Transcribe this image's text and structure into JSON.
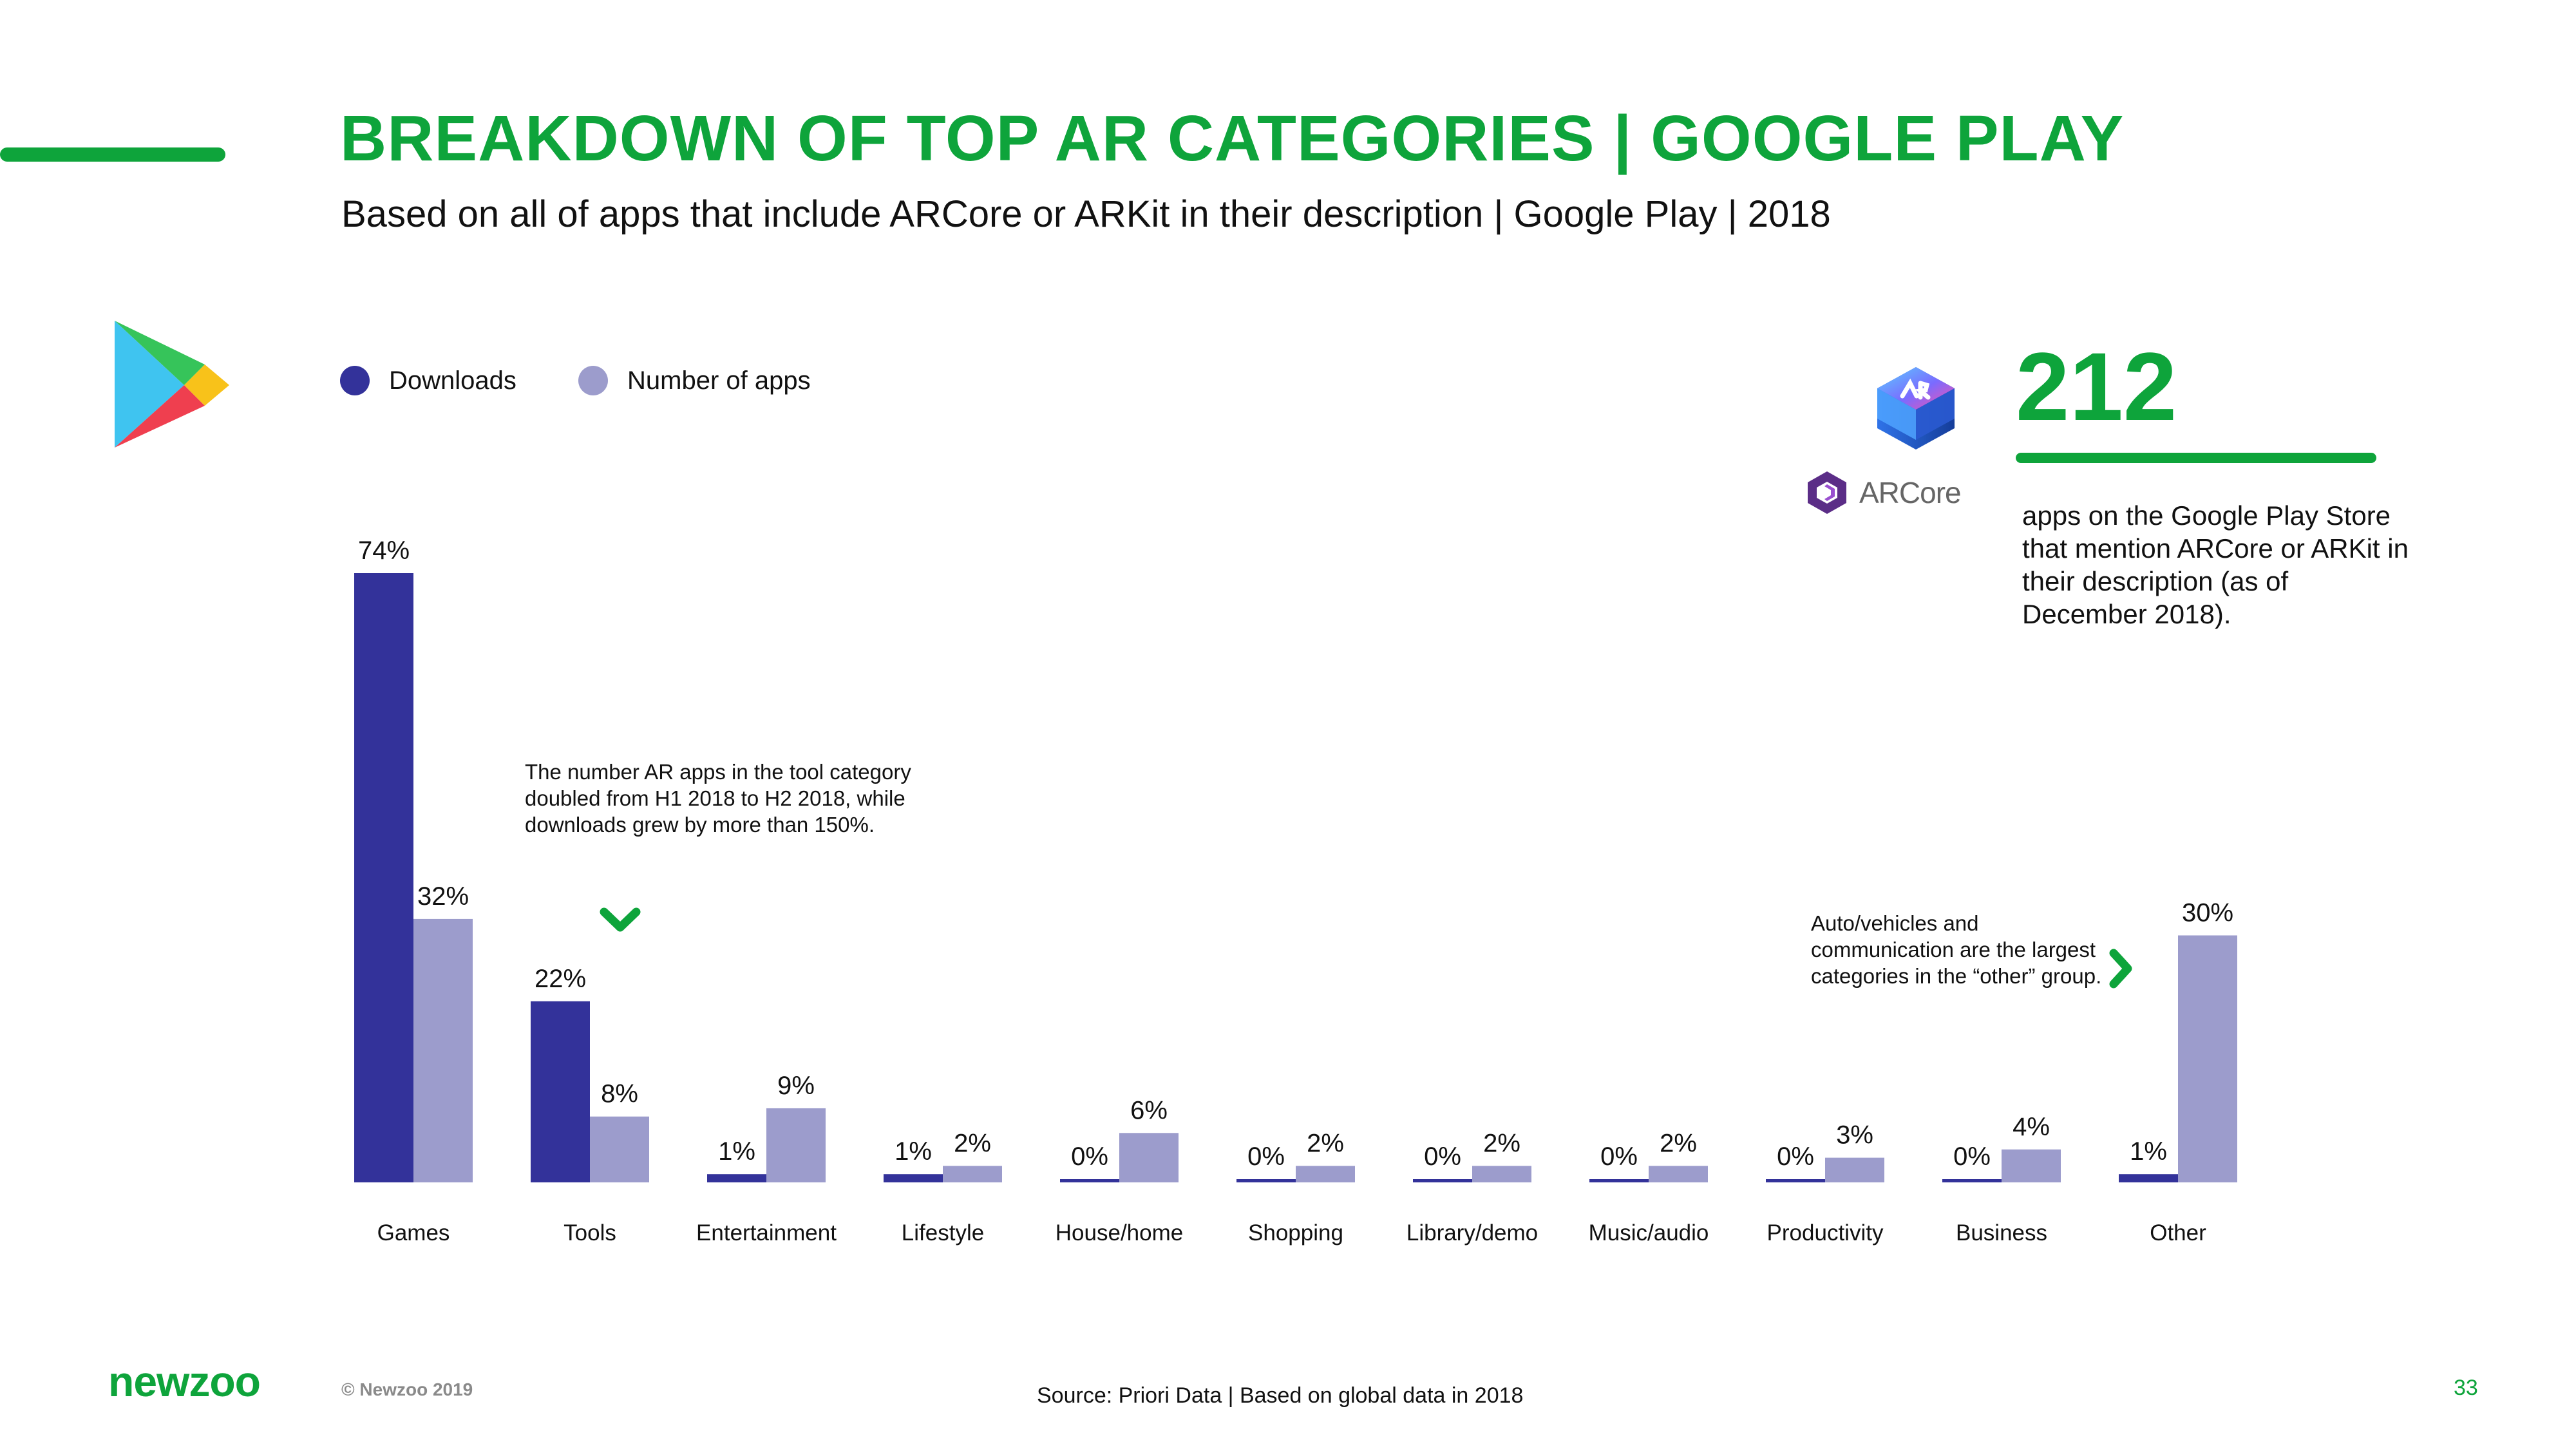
{
  "header": {
    "title": "BREAKDOWN OF TOP AR CATEGORIES | GOOGLE PLAY",
    "subtitle": "Based on all of apps that include ARCore or ARKit in their description | Google Play | 2018"
  },
  "legend": {
    "downloads_label": "Downloads",
    "apps_label": "Number of apps"
  },
  "colors": {
    "brand_green": "#0ea43b",
    "downloads": "#33329a",
    "number_of_apps": "#9c9ccc"
  },
  "icons": {
    "platform": "google-play-icon",
    "arkit": "arkit-icon",
    "arcore": "arcore-icon",
    "tools_annotation_arrow": "chevron-down-icon",
    "other_annotation_arrow": "chevron-right-icon"
  },
  "chart_data": {
    "type": "bar",
    "categories": [
      "Games",
      "Tools",
      "Entertainment",
      "Lifestyle",
      "House/home",
      "Shopping",
      "Library/demo",
      "Music/audio",
      "Productivity",
      "Business",
      "Other"
    ],
    "series": [
      {
        "name": "Downloads",
        "values": [
          74,
          22,
          1,
          1,
          0,
          0,
          0,
          0,
          0,
          0,
          1
        ],
        "labels": [
          "74%",
          "22%",
          "1%",
          "1%",
          "0%",
          "0%",
          "0%",
          "0%",
          "0%",
          "0%",
          "1%"
        ]
      },
      {
        "name": "Number of apps",
        "values": [
          32,
          8,
          9,
          2,
          6,
          2,
          2,
          2,
          3,
          4,
          30
        ],
        "labels": [
          "32%",
          "8%",
          "9%",
          "2%",
          "6%",
          "2%",
          "2%",
          "2%",
          "3%",
          "4%",
          "30%"
        ]
      }
    ],
    "unit": "%",
    "ylim": [
      0,
      74
    ],
    "grid": false,
    "legend_position": "top-left"
  },
  "annotations": {
    "tools": "The number AR apps in the tool category doubled from H1 2018 to H2 2018, while downloads grew by more than 150%.",
    "other": "Auto/vehicles and communication are the largest categories in the “other” group."
  },
  "kpi": {
    "arcore_label": "ARCore",
    "number": "212",
    "description": "apps on the Google Play Store that mention ARCore or ARKit in their description (as of December 2018)."
  },
  "footer": {
    "brand": "newzoo",
    "copyright": "© Newzoo 2019",
    "source": "Source: Priori Data | Based on global data in 2018",
    "page_number": "33"
  }
}
